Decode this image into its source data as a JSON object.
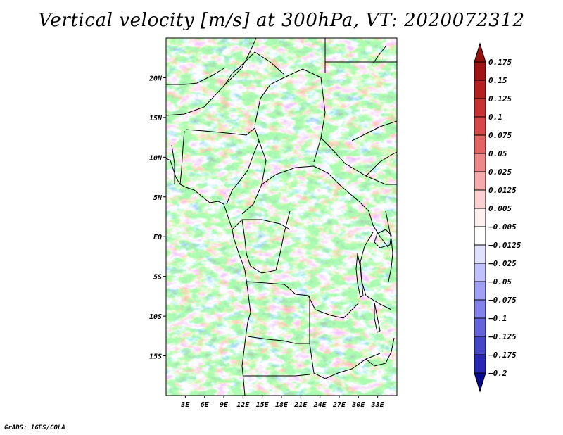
{
  "title": "Vertical velocity [m/s] at 300hPa, VT: 2020072312",
  "footer": "GrADS: IGES/COLA",
  "map": {
    "lon_range": [
      0,
      36
    ],
    "lat_range": [
      -20,
      25
    ],
    "y_tick_labels": [
      {
        "lat": 20,
        "label": "20N"
      },
      {
        "lat": 15,
        "label": "15N"
      },
      {
        "lat": 10,
        "label": "10N"
      },
      {
        "lat": 5,
        "label": "5N"
      },
      {
        "lat": 0,
        "label": "EQ"
      },
      {
        "lat": -5,
        "label": "5S"
      },
      {
        "lat": -10,
        "label": "10S"
      },
      {
        "lat": -15,
        "label": "15S"
      }
    ],
    "x_tick_labels": [
      {
        "lon": 3,
        "label": "3E"
      },
      {
        "lon": 6,
        "label": "6E"
      },
      {
        "lon": 9,
        "label": "9E"
      },
      {
        "lon": 12,
        "label": "12E"
      },
      {
        "lon": 15,
        "label": "15E"
      },
      {
        "lon": 18,
        "label": "18E"
      },
      {
        "lon": 21,
        "label": "21E"
      },
      {
        "lon": 24,
        "label": "24E"
      },
      {
        "lon": 27,
        "label": "27E"
      },
      {
        "lon": 30,
        "label": "30E"
      },
      {
        "lon": 33,
        "label": "33E"
      }
    ]
  },
  "colorbar": {
    "levels": [
      {
        "label": "0.175",
        "color": "#a01414"
      },
      {
        "label": "0.15",
        "color": "#b42020"
      },
      {
        "label": "0.125",
        "color": "#c83232"
      },
      {
        "label": "0.1",
        "color": "#d84848"
      },
      {
        "label": "0.075",
        "color": "#e46464"
      },
      {
        "label": "0.05",
        "color": "#ee8888"
      },
      {
        "label": "0.025",
        "color": "#f6aaaa"
      },
      {
        "label": "0.0125",
        "color": "#fcd0d0"
      },
      {
        "label": "0.005",
        "color": "#fff0f0"
      },
      {
        "label": "-0.005",
        "color": "#ffffff"
      },
      {
        "label": "-0.0125",
        "color": "#e0e0ff"
      },
      {
        "label": "-0.025",
        "color": "#c0c0ff"
      },
      {
        "label": "-0.05",
        "color": "#a0a0f6"
      },
      {
        "label": "-0.075",
        "color": "#8282ec"
      },
      {
        "label": "-0.1",
        "color": "#6464dc"
      },
      {
        "label": "-0.125",
        "color": "#4646c8"
      },
      {
        "label": "-0.175",
        "color": "#2828b4"
      },
      {
        "label": "-0.2",
        "color": "#14149c"
      }
    ],
    "top_color": "#961010",
    "bottom_color": "#0a0a8c"
  }
}
